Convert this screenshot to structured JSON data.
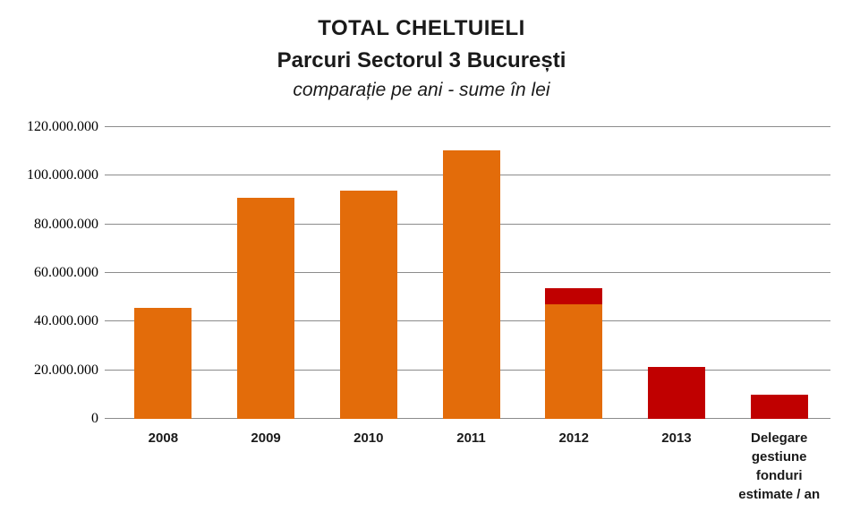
{
  "header": {
    "title": "TOTAL CHELTUIELI",
    "subtitle": "Parcuri Sectorul 3 București",
    "caption": "comparație pe ani - sume în lei"
  },
  "colors": {
    "orange": "#E36C0A",
    "red": "#C00000",
    "gridline": "#8C8C8C",
    "text": "#1A1A1A"
  },
  "chart_data": {
    "type": "bar",
    "stacked": true,
    "title": "TOTAL CHELTUIELI",
    "subtitle": "Parcuri Sectorul 3 București",
    "caption": "comparație pe ani - sume în lei",
    "xlabel": "",
    "ylabel": "",
    "grid": true,
    "legend": "none",
    "ylim": [
      0,
      120000000
    ],
    "ytick_step": 20000000,
    "ytick_labels": [
      "0",
      "20.000.000",
      "40.000.000",
      "60.000.000",
      "80.000.000",
      "100.000.000",
      "120.000.000"
    ],
    "categories": [
      "2008",
      "2009",
      "2010",
      "2011",
      "2012",
      "2013",
      "Delegare gestiune fonduri estimate / an"
    ],
    "series": [
      {
        "name": "orange",
        "color": "#E36C0A",
        "values": [
          45500000,
          91000000,
          94000000,
          110500000,
          47000000,
          0,
          0
        ]
      },
      {
        "name": "red",
        "color": "#C00000",
        "values": [
          0,
          0,
          0,
          0,
          6700000,
          21500000,
          10000000
        ]
      }
    ]
  }
}
